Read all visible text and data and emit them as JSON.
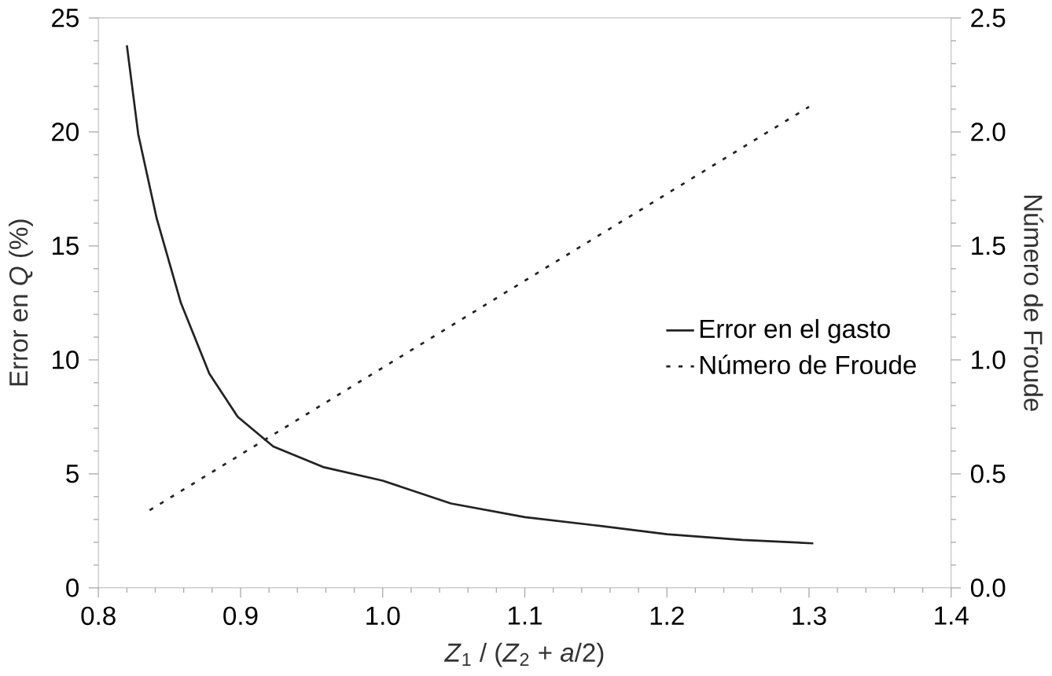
{
  "chart_data": {
    "type": "line",
    "xlabel": "*Z*$_{1}$ / (*Z*$_{2}$ + *a*/2)",
    "ylabel": "Error en *Q* (%)",
    "y2label": "Número de Froude",
    "xlim": [
      0.8,
      1.4
    ],
    "xticks": [
      {
        "value": 0.8,
        "label": "0.8"
      },
      {
        "value": 0.9,
        "label": "0.9"
      },
      {
        "value": 1.0,
        "label": "1.0"
      },
      {
        "value": 1.1,
        "label": "1.1"
      },
      {
        "value": 1.2,
        "label": "1.2"
      },
      {
        "value": 1.3,
        "label": "1.3"
      },
      {
        "value": 1.4,
        "label": "1.4"
      }
    ],
    "ylim": [
      0,
      25
    ],
    "yticks": [
      0,
      5,
      10,
      15,
      20,
      25
    ],
    "y2lim": [
      0,
      2.5
    ],
    "y2ticks": [
      {
        "value": 0,
        "label": "0.0"
      },
      {
        "value": 0.5,
        "label": "0.5"
      },
      {
        "value": 1.0,
        "label": "1.0"
      },
      {
        "value": 1.5,
        "label": "1.5"
      },
      {
        "value": 2.0,
        "label": "2.0"
      },
      {
        "value": 2.5,
        "label": "2.5"
      }
    ],
    "legend": "right",
    "marker": "none",
    "series": [
      {
        "name": "Error en el gasto",
        "color": "#222222",
        "line_style": "solid",
        "x": [
          0.82,
          0.828,
          0.841,
          0.858,
          0.878,
          0.898,
          0.923,
          0.958,
          1.0,
          1.048,
          1.1,
          1.148,
          1.2,
          1.253,
          1.303
        ],
        "values": [
          23.8,
          19.9,
          16.2,
          12.5,
          9.4,
          7.5,
          6.2,
          5.3,
          4.7,
          3.7,
          3.1,
          2.75,
          2.35,
          2.1,
          1.95
        ]
      },
      {
        "name": "Número de Froude",
        "color": "#222222",
        "line_style": "dotted",
        "axis": "y2",
        "x": [
          0.836,
          1.3
        ],
        "values": [
          0.34,
          2.11
        ]
      }
    ]
  }
}
